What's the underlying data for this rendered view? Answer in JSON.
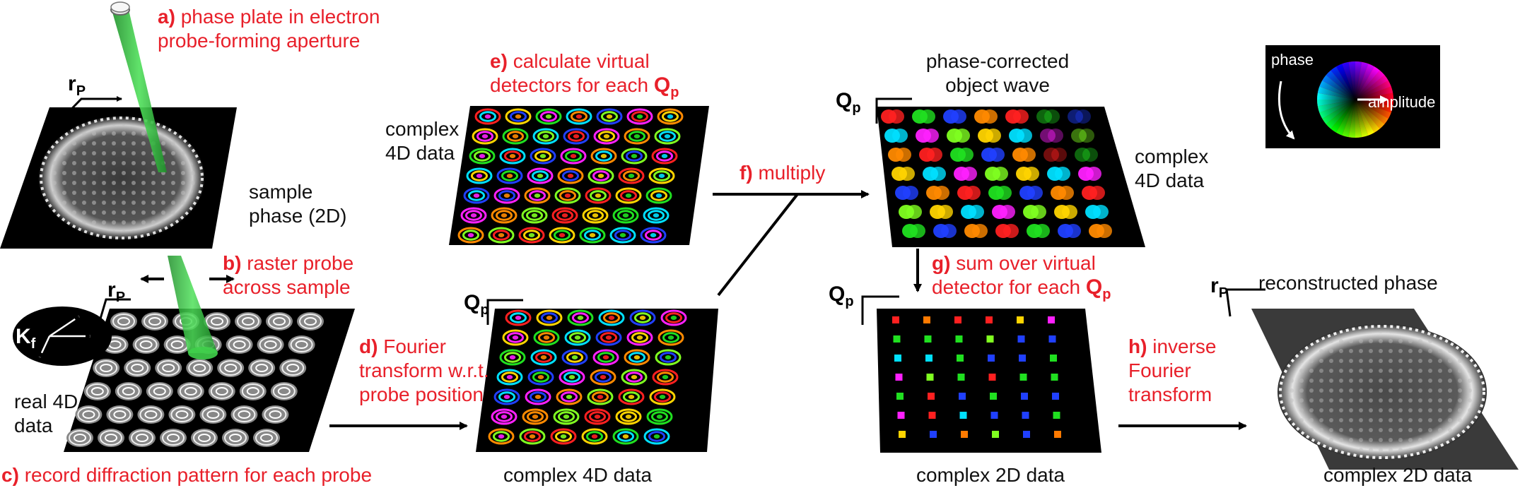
{
  "steps": {
    "a": {
      "letter": "a)",
      "line1": "phase plate in electron",
      "line2": "probe-forming aperture"
    },
    "b": {
      "letter": "b)",
      "line1": "raster probe",
      "line2": "across sample"
    },
    "c": {
      "letter": "c)",
      "line1": "record diffraction pattern for each probe"
    },
    "d": {
      "letter": "d)",
      "line1": "Fourier",
      "line2": "transform w.r.t.",
      "line3": "probe position"
    },
    "e": {
      "letter": "e)",
      "line1": "calculate virtual",
      "line2": "detectors for each",
      "sym": "Q",
      "sub": "p"
    },
    "f": {
      "letter": "f)",
      "line1": "multiply"
    },
    "g": {
      "letter": "g)",
      "line1": "sum over virtual",
      "line2": "detector for each",
      "sym": "Q",
      "sub": "p"
    },
    "h": {
      "letter": "h)",
      "line1": "inverse",
      "line2": "Fourier",
      "line3": "transform"
    }
  },
  "labels": {
    "sample_line1": "sample",
    "sample_line2": "phase (2D)",
    "real4d_line1": "real 4D",
    "real4d_line2": "data",
    "complex4d_left_line1": "complex",
    "complex4d_left_line2": "4D data",
    "complex4d_bottom": "complex 4D data",
    "phase_corrected_line1": "phase-corrected",
    "phase_corrected_line2": "object wave",
    "complex4d_right_line1": "complex",
    "complex4d_right_line2": "4D data",
    "complex2d_mid": "complex 2D data",
    "reconstructed": "reconstructed phase",
    "complex2d_right": "complex 2D data"
  },
  "axes": {
    "rp": {
      "sym": "r",
      "sub": "P"
    },
    "qp": {
      "sym": "Q",
      "sub": "p"
    },
    "kf": {
      "sym": "K",
      "sub": "f"
    }
  },
  "legend": {
    "phase": "phase",
    "amplitude": "amplitude"
  },
  "colors": {
    "accent_red": "#e8202a",
    "beam_green": "#2fbf3a"
  }
}
